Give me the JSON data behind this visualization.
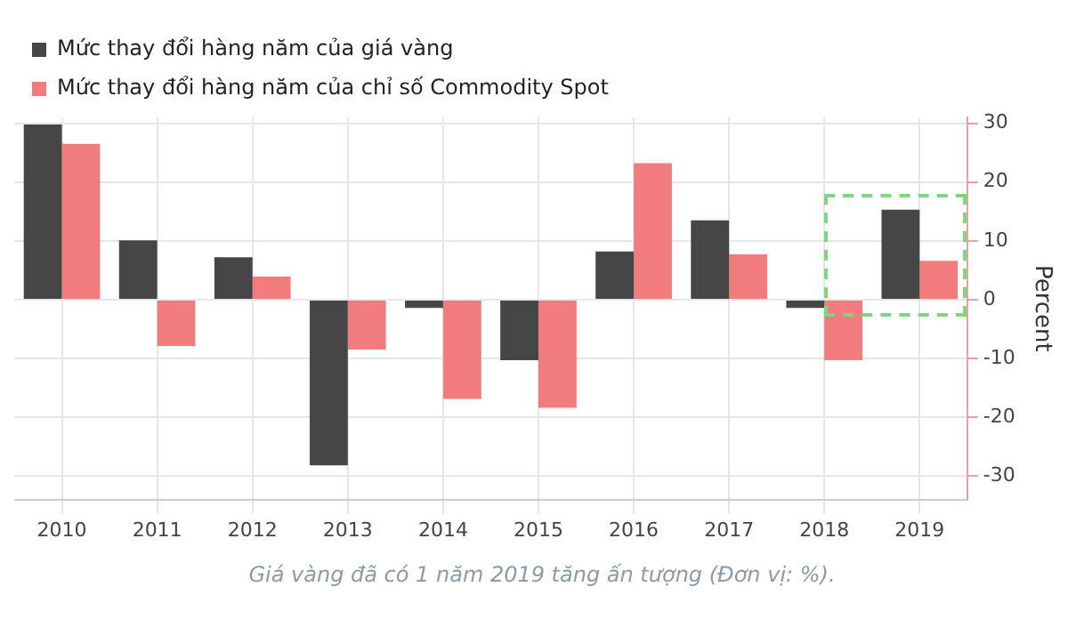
{
  "chart_data": {
    "type": "bar",
    "categories": [
      "2010",
      "2011",
      "2012",
      "2013",
      "2014",
      "2015",
      "2016",
      "2017",
      "2018",
      "2019"
    ],
    "series": [
      {
        "name": "Mức thay đổi hàng năm của giá vàng",
        "color": "#464646",
        "values": [
          29.8,
          10.1,
          7.2,
          -28.2,
          -1.4,
          -10.3,
          8.2,
          13.5,
          -1.4,
          15.3
        ]
      },
      {
        "name": "Mức thay đổi hàng năm của chỉ số Commodity Spot",
        "color": "#f07c7e",
        "values": [
          26.5,
          -7.9,
          3.9,
          -8.5,
          -16.9,
          -18.4,
          23.2,
          7.7,
          -10.3,
          6.6
        ]
      }
    ],
    "ylabel": "Percent",
    "ylim": [
      -34,
      31
    ],
    "yticks": [
      -30,
      -20,
      -10,
      0,
      10,
      20,
      30
    ],
    "grid": true,
    "legend": "top left",
    "annotations": [
      "Giá vàng đã có 1 năm 2019 tăng ấn tượng (Đơn vị: %)."
    ]
  }
}
